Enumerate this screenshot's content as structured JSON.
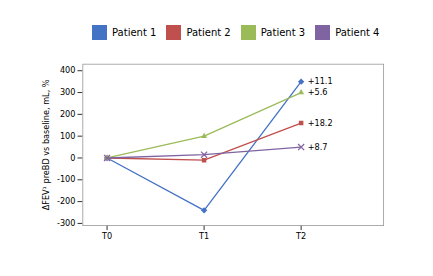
{
  "chart_data": {
    "type": "line",
    "x": [
      0,
      1,
      2
    ],
    "xlim": [
      -0.25,
      2.85
    ],
    "xticks": [
      {
        "value": 0,
        "label": "T0"
      },
      {
        "value": 1,
        "label": "T1"
      },
      {
        "value": 2,
        "label": "T2"
      }
    ],
    "ylim": [
      -310,
      430
    ],
    "yticks": [
      -300,
      -200,
      -100,
      0,
      100,
      200,
      300,
      400
    ],
    "ylabel": "ΔFEV¹ preBD vs baseline, mL, %",
    "grid": false,
    "series": [
      {
        "name": "Patient 1",
        "color": "#4472C4",
        "marker": "diamond",
        "values": [
          0,
          -240,
          350
        ],
        "annotation": "+11.1"
      },
      {
        "name": "Patient 2",
        "color": "#C0504D",
        "marker": "square",
        "values": [
          0,
          -10,
          160
        ],
        "annotation": "+18.2"
      },
      {
        "name": "Patient 3",
        "color": "#9BBB59",
        "marker": "triangle",
        "values": [
          0,
          100,
          300
        ],
        "annotation": "+5.6"
      },
      {
        "name": "Patient 4",
        "color": "#8064A2",
        "marker": "x",
        "values": [
          0,
          15,
          50
        ],
        "annotation": "+8.7"
      }
    ]
  }
}
